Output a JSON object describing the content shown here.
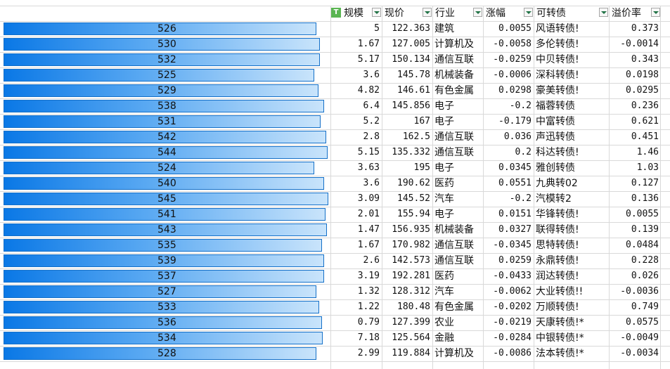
{
  "headers": {
    "size": "规模",
    "price": "现价",
    "industry": "行业",
    "change": "涨幅",
    "bond": "可转债",
    "premium": "溢价率"
  },
  "rows": [
    {
      "id": "526",
      "size": "5",
      "price": "122.363",
      "industry": "建筑",
      "change": "0.0055",
      "bond": "风语转债!",
      "premium": "0.373",
      "bar": 0.93
    },
    {
      "id": "530",
      "size": "1.67",
      "price": "127.005",
      "industry": "计算机及",
      "change": "-0.0058",
      "bond": "多伦转债!",
      "premium": "-0.0014",
      "bar": 0.941
    },
    {
      "id": "532",
      "size": "5.17",
      "price": "150.134",
      "industry": "通信互联",
      "change": "-0.0259",
      "bond": "中贝转债!",
      "premium": "0.343",
      "bar": 0.941
    },
    {
      "id": "525",
      "size": "3.6",
      "price": "145.78",
      "industry": "机械装备",
      "change": "-0.0006",
      "bond": "深科转债!",
      "premium": "0.0198",
      "bar": 0.925
    },
    {
      "id": "529",
      "size": "4.82",
      "price": "146.61",
      "industry": "有色金属",
      "change": "0.0298",
      "bond": "豪美转债!",
      "premium": "0.0295",
      "bar": 0.938
    },
    {
      "id": "538",
      "size": "6.4",
      "price": "145.856",
      "industry": "电子",
      "change": "-0.2",
      "bond": "福蓉转债",
      "premium": "0.236",
      "bar": 0.955
    },
    {
      "id": "531",
      "size": "5.2",
      "price": "167",
      "industry": "电子",
      "change": "-0.179",
      "bond": "中富转债",
      "premium": "0.621",
      "bar": 0.944
    },
    {
      "id": "542",
      "size": "2.8",
      "price": "162.5",
      "industry": "通信互联",
      "change": "0.036",
      "bond": "声迅转债",
      "premium": "0.451",
      "bar": 0.96
    },
    {
      "id": "544",
      "size": "5.15",
      "price": "135.332",
      "industry": "通信互联",
      "change": "0.2",
      "bond": "科达转债!",
      "premium": "1.46",
      "bar": 0.964
    },
    {
      "id": "524",
      "size": "3.63",
      "price": "195",
      "industry": "电子",
      "change": "0.0345",
      "bond": "雅创转债",
      "premium": "1.03",
      "bar": 0.925
    },
    {
      "id": "540",
      "size": "3.6",
      "price": "190.62",
      "industry": "医药",
      "change": "0.0551",
      "bond": "九典转02",
      "premium": "0.127",
      "bar": 0.955
    },
    {
      "id": "545",
      "size": "3.09",
      "price": "145.52",
      "industry": "汽车",
      "change": "-0.2",
      "bond": "汽模转2",
      "premium": "0.136",
      "bar": 0.966
    },
    {
      "id": "541",
      "size": "2.01",
      "price": "155.94",
      "industry": "电子",
      "change": "0.0151",
      "bond": "华锋转债!",
      "premium": "0.0055",
      "bar": 0.958
    },
    {
      "id": "543",
      "size": "1.47",
      "price": "156.935",
      "industry": "机械装备",
      "change": "0.0327",
      "bond": "联得转债!",
      "premium": "0.139",
      "bar": 0.962
    },
    {
      "id": "535",
      "size": "1.67",
      "price": "170.982",
      "industry": "通信互联",
      "change": "-0.0345",
      "bond": "思特转债!",
      "premium": "0.0484",
      "bar": 0.947
    },
    {
      "id": "539",
      "size": "2.6",
      "price": "142.573",
      "industry": "通信互联",
      "change": "0.0259",
      "bond": "永鼎转债!",
      "premium": "0.228",
      "bar": 0.953
    },
    {
      "id": "537",
      "size": "3.19",
      "price": "192.281",
      "industry": "医药",
      "change": "-0.0433",
      "bond": "润达转债!",
      "premium": "0.026",
      "bar": 0.953
    },
    {
      "id": "527",
      "size": "1.32",
      "price": "128.312",
      "industry": "汽车",
      "change": "-0.0062",
      "bond": "大业转债!!",
      "premium": "-0.0036",
      "bar": 0.93
    },
    {
      "id": "533",
      "size": "1.22",
      "price": "180.48",
      "industry": "有色金属",
      "change": "-0.0202",
      "bond": "万顺转债!",
      "premium": "0.749",
      "bar": 0.94
    },
    {
      "id": "536",
      "size": "0.79",
      "price": "127.399",
      "industry": "农业",
      "change": "-0.0219",
      "bond": "天康转债!*",
      "premium": "0.0575",
      "bar": 0.947
    },
    {
      "id": "534",
      "size": "7.18",
      "price": "125.564",
      "industry": "金融",
      "change": "-0.0284",
      "bond": "中银转债!*",
      "premium": "-0.0049",
      "bar": 0.949
    },
    {
      "id": "528",
      "size": "2.99",
      "price": "119.884",
      "industry": "计算机及",
      "change": "-0.0086",
      "bond": "法本转债!*",
      "premium": "-0.0034",
      "bar": 0.93
    }
  ],
  "colors": {
    "bar_start": "#0a78e6",
    "bar_end": "#c9e4fb",
    "grid": "#d9d9d9",
    "filter_icon": "#217346",
    "table_icon": "#5ab552"
  },
  "icons": {
    "header_filter": "filter-dropdown-icon",
    "table_indicator": "table-icon"
  }
}
